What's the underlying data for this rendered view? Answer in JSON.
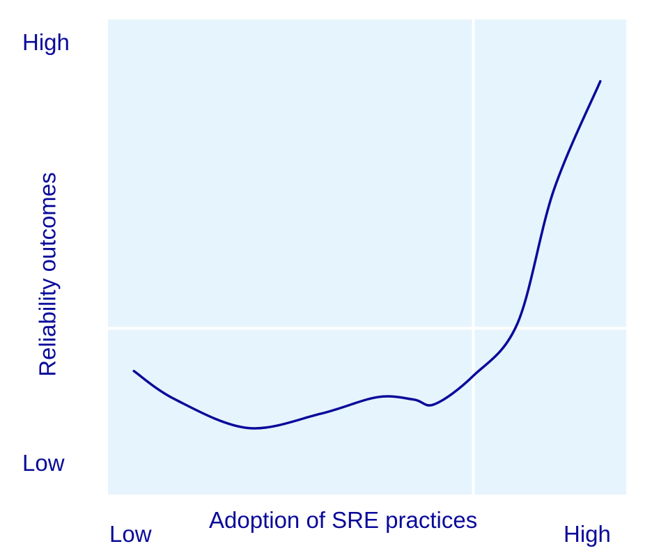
{
  "colors": {
    "plot_background": "#e6f4fd",
    "divider": "#ffffff",
    "line": "#0a0a9a",
    "text": "#0a0a9a"
  },
  "chart_data": {
    "type": "line",
    "title": "",
    "xlabel": "Adoption of SRE practices",
    "ylabel": "Reliability outcomes",
    "x_tick_labels": {
      "low": "Low",
      "high": "High"
    },
    "y_tick_labels": {
      "low": "Low",
      "high": "High"
    },
    "xlim": [
      0,
      1
    ],
    "ylim": [
      0,
      1
    ],
    "grid": false,
    "quadrant_dividers": {
      "x": 0.705,
      "y": 0.35
    },
    "series": [
      {
        "x": [
          0.05,
          0.13,
          0.27,
          0.41,
          0.52,
          0.59,
          0.63,
          0.705,
          0.79,
          0.86,
          0.95
        ],
        "y": [
          0.26,
          0.2,
          0.14,
          0.17,
          0.205,
          0.2,
          0.19,
          0.25,
          0.36,
          0.64,
          0.87
        ]
      }
    ]
  }
}
